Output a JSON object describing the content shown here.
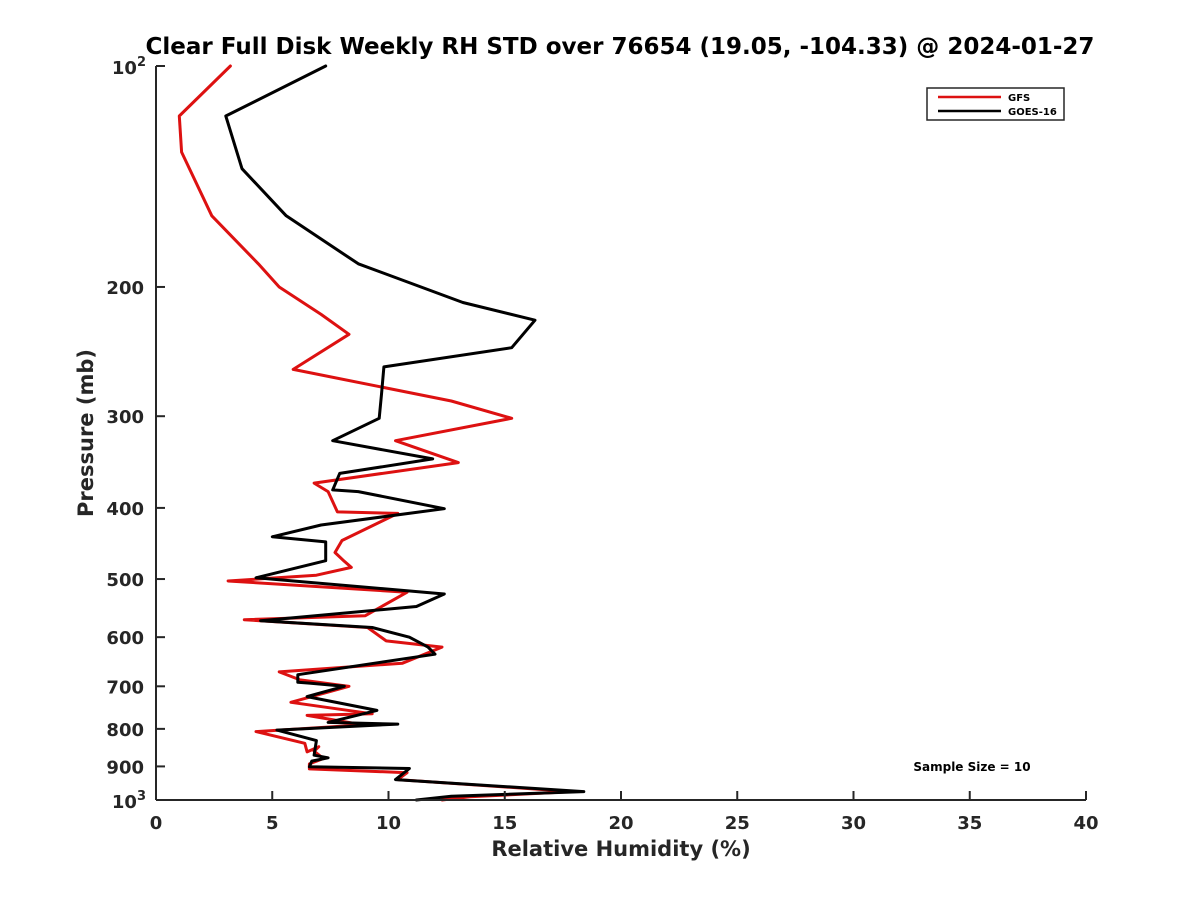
{
  "chart_data": {
    "type": "line",
    "title": "Clear Full Disk Weekly RH STD over 76654 (19.05, -104.33) @ 2024-01-27",
    "xlabel": "Relative Humidity (%)",
    "ylabel": "Pressure (mb)",
    "xlim": [
      0,
      40
    ],
    "ylim": [
      100,
      1000
    ],
    "yscale": "log",
    "y_reversed": true,
    "x_ticks": [
      0,
      5,
      10,
      15,
      20,
      25,
      30,
      35,
      40
    ],
    "x_tick_labels": [
      "0",
      "5",
      "10",
      "15",
      "20",
      "25",
      "30",
      "35",
      "40"
    ],
    "y_ticks": [
      200,
      300,
      400,
      500,
      600,
      700,
      800,
      900
    ],
    "y_tick_labels": [
      "200",
      "300",
      "400",
      "500",
      "600",
      "700",
      "800",
      "900"
    ],
    "y_exp_ticks": [
      {
        "value": 100,
        "base": "10",
        "exp": "2"
      },
      {
        "value": 1000,
        "base": "10",
        "exp": "3"
      }
    ],
    "grid": false,
    "legend_position": "top-right",
    "annotation": "Sample Size = 10",
    "series": [
      {
        "name": "GFS",
        "color": "#dd1111",
        "x": [
          3.2,
          1.0,
          1.1,
          2.4,
          4.4,
          5.3,
          7.1,
          8.3,
          5.9,
          12.7,
          15.3,
          10.3,
          13.0,
          6.8,
          7.4,
          7.8,
          10.4,
          8.0,
          7.7,
          8.1,
          8.4,
          6.9,
          3.1,
          10.8,
          9.0,
          3.8,
          9.1,
          9.9,
          12.3,
          10.6,
          5.3,
          6.2,
          8.3,
          5.8,
          9.3,
          6.5,
          8.9,
          4.3,
          6.4,
          6.5,
          7.0,
          6.8,
          7.2,
          6.6,
          6.6,
          10.8,
          10.4,
          17.9,
          13.5,
          12.3
        ],
        "y": [
          100,
          117,
          131,
          160,
          186,
          200,
          218,
          232,
          259,
          286,
          302,
          324,
          347,
          370,
          380,
          405,
          407,
          443,
          460,
          473,
          482,
          494,
          503,
          521,
          561,
          568,
          582,
          607,
          619,
          651,
          669,
          686,
          700,
          736,
          763,
          767,
          790,
          807,
          837,
          860,
          846,
          858,
          878,
          893,
          907,
          918,
          938,
          974,
          990,
          1000
        ]
      },
      {
        "name": "GOES-16",
        "color": "#000000",
        "x": [
          7.3,
          3.0,
          3.7,
          5.6,
          8.7,
          13.2,
          16.3,
          15.3,
          9.8,
          9.7,
          9.6,
          7.6,
          11.9,
          7.9,
          7.6,
          8.7,
          12.4,
          7.1,
          5.0,
          7.3,
          7.3,
          4.3,
          12.4,
          11.2,
          4.5,
          9.3,
          10.9,
          11.7,
          12.0,
          6.1,
          6.1,
          6.6,
          8.1,
          6.5,
          9.5,
          7.4,
          10.4,
          5.2,
          6.9,
          6.8,
          7.4,
          6.7,
          6.6,
          10.9,
          10.3,
          18.4,
          12.7,
          11.2
        ],
        "y": [
          100,
          117,
          138,
          160,
          186,
          210,
          222,
          242,
          257,
          280,
          302,
          324,
          343,
          359,
          378,
          380,
          401,
          422,
          438,
          445,
          472,
          498,
          524,
          545,
          570,
          582,
          600,
          619,
          633,
          675,
          691,
          693,
          700,
          723,
          755,
          784,
          788,
          803,
          830,
          869,
          876,
          885,
          901,
          906,
          938,
          974,
          988,
          1000
        ]
      }
    ]
  }
}
